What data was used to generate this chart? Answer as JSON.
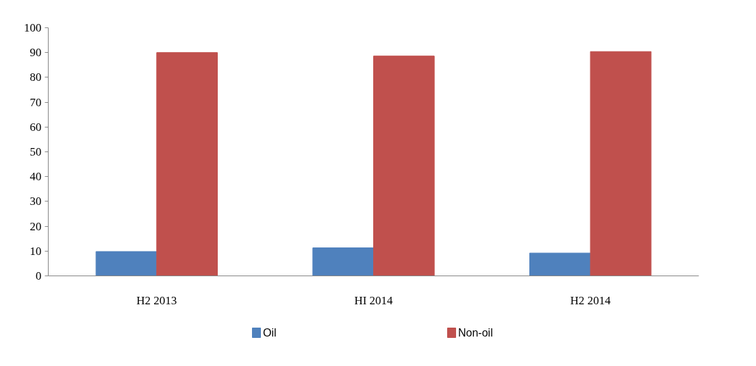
{
  "chart_data": {
    "type": "bar",
    "categories": [
      "H2 2013",
      "HI 2014",
      "H2 2014"
    ],
    "series": [
      {
        "name": "Oil",
        "color": "#4f81bd",
        "values": [
          9.8,
          11.3,
          9.2
        ]
      },
      {
        "name": "Non-oil",
        "color": "#c0504d",
        "values": [
          90.0,
          88.6,
          90.4
        ]
      }
    ],
    "ylim": [
      0,
      100
    ],
    "yticks": [
      0,
      10,
      20,
      30,
      40,
      50,
      60,
      70,
      80,
      90,
      100
    ],
    "grid": false,
    "legend": "bottom"
  }
}
